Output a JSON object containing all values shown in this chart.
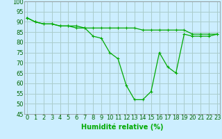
{
  "xlabel": "Humidité relative (%)",
  "background_color": "#cceeff",
  "grid_color": "#aacccc",
  "line_color": "#00aa00",
  "x": [
    0,
    1,
    2,
    3,
    4,
    5,
    6,
    7,
    8,
    9,
    10,
    11,
    12,
    13,
    14,
    15,
    16,
    17,
    18,
    19,
    20,
    21,
    22,
    23
  ],
  "line1": [
    92,
    90,
    89,
    89,
    88,
    88,
    88,
    87,
    87,
    87,
    87,
    87,
    87,
    87,
    86,
    86,
    86,
    86,
    86,
    86,
    84,
    84,
    84,
    84
  ],
  "line2": [
    92,
    90,
    89,
    89,
    88,
    88,
    87,
    87,
    83,
    82,
    75,
    72,
    59,
    52,
    52,
    56,
    75,
    68,
    65,
    84,
    83,
    83,
    83,
    84
  ],
  "ylim": [
    45,
    100
  ],
  "xlim": [
    -0.3,
    23.3
  ],
  "yticks": [
    45,
    50,
    55,
    60,
    65,
    70,
    75,
    80,
    85,
    90,
    95,
    100
  ],
  "ytick_labels": [
    "45",
    "50",
    "55",
    "60",
    "65",
    "70",
    "75",
    "80",
    "85",
    "90",
    "95",
    "100"
  ],
  "xticks": [
    0,
    1,
    2,
    3,
    4,
    5,
    6,
    7,
    8,
    9,
    10,
    11,
    12,
    13,
    14,
    15,
    16,
    17,
    18,
    19,
    20,
    21,
    22,
    23
  ],
  "xlabel_fontsize": 7,
  "tick_fontsize": 6
}
